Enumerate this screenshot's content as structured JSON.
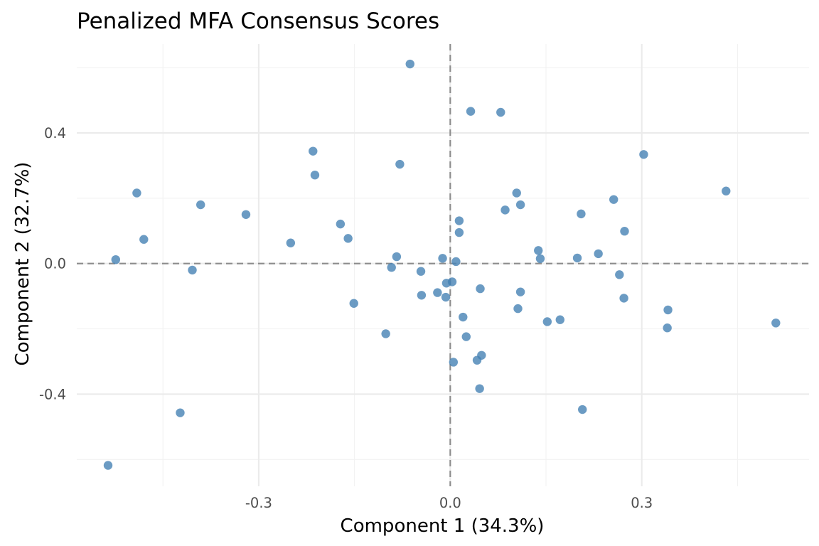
{
  "chart_data": {
    "type": "scatter",
    "title": "Penalized MFA Consensus Scores",
    "xlabel": "Component 1 (34.3%)",
    "ylabel": "Component 2 (32.7%)",
    "xlim": [
      -0.585,
      0.562
    ],
    "ylim": [
      -0.682,
      0.672
    ],
    "x_ticks": [
      -0.3,
      0.0,
      0.3
    ],
    "x_tick_labels": [
      "-0.3",
      "0.0",
      "0.3"
    ],
    "y_ticks": [
      -0.4,
      0.0,
      0.4
    ],
    "y_tick_labels": [
      "-0.4",
      "0.0",
      "0.4"
    ],
    "x_minor": [
      -0.45,
      -0.15,
      0.15,
      0.45
    ],
    "y_minor": [
      -0.6,
      -0.2,
      0.2,
      0.6
    ],
    "reference_lines": {
      "x": 0.0,
      "y": 0.0,
      "style": "dashed",
      "color": "#8c8c8c"
    },
    "grid": true,
    "legend": "none",
    "point_color": "#4682b4",
    "points": [
      {
        "x": -0.063,
        "y": 0.611
      },
      {
        "x": 0.032,
        "y": 0.466
      },
      {
        "x": 0.079,
        "y": 0.463
      },
      {
        "x": 0.303,
        "y": 0.334
      },
      {
        "x": -0.215,
        "y": 0.344
      },
      {
        "x": -0.079,
        "y": 0.304
      },
      {
        "x": -0.212,
        "y": 0.271
      },
      {
        "x": 0.432,
        "y": 0.222
      },
      {
        "x": -0.491,
        "y": 0.216
      },
      {
        "x": 0.104,
        "y": 0.216
      },
      {
        "x": 0.256,
        "y": 0.196
      },
      {
        "x": -0.391,
        "y": 0.18
      },
      {
        "x": 0.11,
        "y": 0.18
      },
      {
        "x": 0.086,
        "y": 0.164
      },
      {
        "x": 0.205,
        "y": 0.152
      },
      {
        "x": -0.32,
        "y": 0.15
      },
      {
        "x": 0.014,
        "y": 0.131
      },
      {
        "x": -0.172,
        "y": 0.121
      },
      {
        "x": 0.273,
        "y": 0.099
      },
      {
        "x": 0.014,
        "y": 0.095
      },
      {
        "x": -0.16,
        "y": 0.077
      },
      {
        "x": -0.48,
        "y": 0.074
      },
      {
        "x": -0.25,
        "y": 0.063
      },
      {
        "x": 0.138,
        "y": 0.04
      },
      {
        "x": 0.232,
        "y": 0.03
      },
      {
        "x": -0.084,
        "y": 0.021
      },
      {
        "x": 0.199,
        "y": 0.017
      },
      {
        "x": -0.012,
        "y": 0.016
      },
      {
        "x": 0.141,
        "y": 0.015
      },
      {
        "x": -0.524,
        "y": 0.012
      },
      {
        "x": 0.009,
        "y": 0.006
      },
      {
        "x": -0.092,
        "y": -0.012
      },
      {
        "x": -0.404,
        "y": -0.02
      },
      {
        "x": -0.046,
        "y": -0.024
      },
      {
        "x": 0.265,
        "y": -0.034
      },
      {
        "x": 0.003,
        "y": -0.056
      },
      {
        "x": -0.006,
        "y": -0.06
      },
      {
        "x": 0.047,
        "y": -0.077
      },
      {
        "x": 0.11,
        "y": -0.087
      },
      {
        "x": -0.02,
        "y": -0.089
      },
      {
        "x": -0.045,
        "y": -0.097
      },
      {
        "x": -0.007,
        "y": -0.103
      },
      {
        "x": 0.272,
        "y": -0.106
      },
      {
        "x": -0.151,
        "y": -0.122
      },
      {
        "x": 0.106,
        "y": -0.138
      },
      {
        "x": 0.341,
        "y": -0.142
      },
      {
        "x": 0.02,
        "y": -0.164
      },
      {
        "x": 0.172,
        "y": -0.172
      },
      {
        "x": 0.152,
        "y": -0.178
      },
      {
        "x": 0.51,
        "y": -0.182
      },
      {
        "x": 0.34,
        "y": -0.197
      },
      {
        "x": -0.101,
        "y": -0.215
      },
      {
        "x": 0.025,
        "y": -0.224
      },
      {
        "x": 0.049,
        "y": -0.281
      },
      {
        "x": 0.042,
        "y": -0.296
      },
      {
        "x": 0.005,
        "y": -0.302
      },
      {
        "x": 0.046,
        "y": -0.383
      },
      {
        "x": 0.207,
        "y": -0.447
      },
      {
        "x": -0.423,
        "y": -0.457
      },
      {
        "x": -0.536,
        "y": -0.618
      }
    ]
  }
}
